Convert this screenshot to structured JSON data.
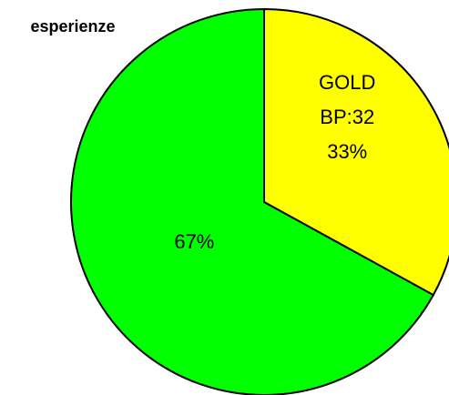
{
  "chart_data": {
    "type": "pie",
    "title": "esperienze",
    "categories": [
      "GOLD",
      null
    ],
    "values": [
      33,
      67
    ],
    "value_labels": [
      "33%",
      "67%"
    ],
    "annotations": [
      "BP:32",
      null
    ],
    "colors": [
      "#ffff00",
      "#00ff00"
    ]
  }
}
